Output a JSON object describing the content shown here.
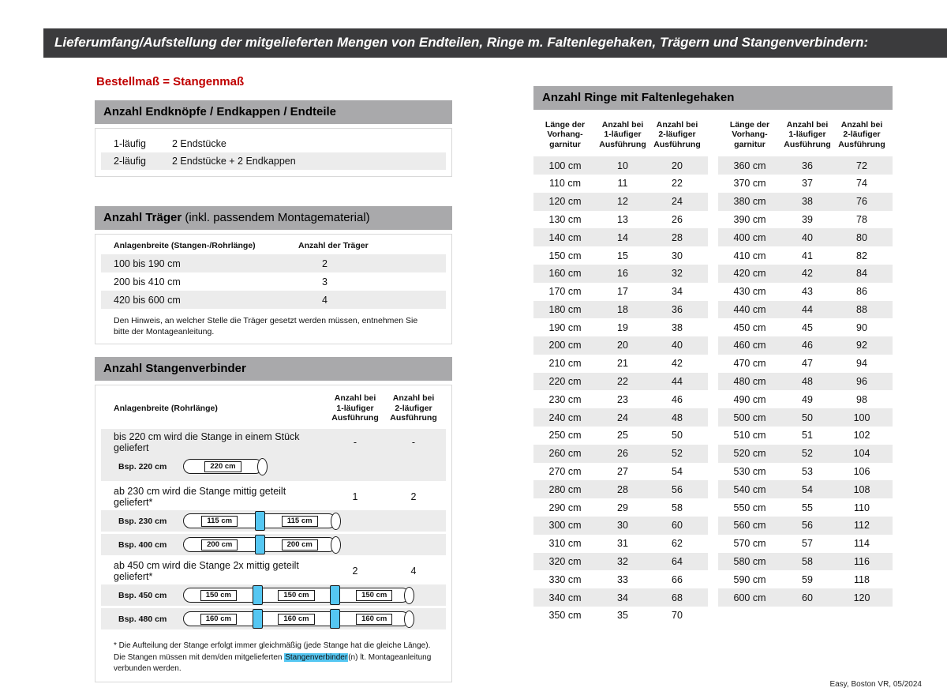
{
  "page": {
    "title": "Lieferumfang/Aufstellung der mitgelieferten Mengen von Endteilen, Ringe m. Faltenlegehaken, Trägern und Stangenverbindern:",
    "note_red": "Bestellmaß = Stangenmaß",
    "footer": "Easy, Boston VR, 05/2024"
  },
  "colors": {
    "title_bar_bg": "#3b3b3d",
    "section_bar_bg": "#a9a9ab",
    "accent_red": "#c00000",
    "row_stripe": "#ececec",
    "connector_blue": "#55c7f2"
  },
  "endteile": {
    "title": "Anzahl Endknöpfe / Endkappen / Endteile",
    "rows": [
      {
        "label": "1-läufig",
        "value": "2 Endstücke"
      },
      {
        "label": "2-läufig",
        "value": "2 Endstücke + 2 Endkappen"
      }
    ]
  },
  "traeger": {
    "title_bold": "Anzahl Träger",
    "title_rest": " (inkl. passendem Montagematerial)",
    "col1": "Anlagenbreite (Stangen-/Rohrlänge)",
    "col2": "Anzahl der Träger",
    "rows": [
      {
        "range": "100 bis 190 cm",
        "count": "2"
      },
      {
        "range": "200 bis 410 cm",
        "count": "3"
      },
      {
        "range": "420 bis 600 cm",
        "count": "4"
      }
    ],
    "note": "Den Hinweis, an welcher Stelle die Träger gesetzt werden müssen, entnehmen Sie bitte der Montageanleitung."
  },
  "verbinder": {
    "title": "Anzahl Stangenverbinder",
    "col1": "Anlagenbreite (Rohrlänge)",
    "col2": "Anzahl bei\n1-läufiger\nAusführung",
    "col3": "Anzahl bei\n2-läufiger\nAusführung",
    "groups": [
      {
        "text": "bis 220 cm wird die Stange in einem Stück geliefert",
        "count1": "-",
        "count2": "-",
        "examples": [
          {
            "label": "Bsp. 220 cm",
            "segments": [
              "220 cm"
            ]
          }
        ]
      },
      {
        "text": "ab 230 cm wird die Stange mittig geteilt geliefert*",
        "count1": "1",
        "count2": "2",
        "examples": [
          {
            "label": "Bsp. 230 cm",
            "segments": [
              "115 cm",
              "115 cm"
            ]
          },
          {
            "label": "Bsp. 400 cm",
            "segments": [
              "200 cm",
              "200 cm"
            ]
          }
        ]
      },
      {
        "text": "ab 450 cm wird die Stange 2x mittig geteilt geliefert*",
        "count1": "2",
        "count2": "4",
        "examples": [
          {
            "label": "Bsp. 450 cm",
            "segments": [
              "150 cm",
              "150 cm",
              "150 cm"
            ]
          },
          {
            "label": "Bsp. 480 cm",
            "segments": [
              "160 cm",
              "160 cm",
              "160 cm"
            ]
          }
        ]
      }
    ],
    "footnote_pre": "* Die Aufteilung der Stange erfolgt immer gleichmäßig (jede Stange hat die gleiche Länge). Die Stangen müssen mit dem/den mitgelieferten ",
    "footnote_highlight": "Stangenverbinder",
    "footnote_post": "(n) lt. Montageanleitung verbunden werden."
  },
  "rings": {
    "title": "Anzahl Ringe mit Faltenlegehaken",
    "col_length": "Länge der\nVorhang-\ngarnitur",
    "col_one": "Anzahl bei\n1-läufiger\nAusführung",
    "col_two": "Anzahl bei\n2-läufiger\nAusführung",
    "left_rows": [
      [
        "100 cm",
        "10",
        "20"
      ],
      [
        "110 cm",
        "11",
        "22"
      ],
      [
        "120 cm",
        "12",
        "24"
      ],
      [
        "130 cm",
        "13",
        "26"
      ],
      [
        "140 cm",
        "14",
        "28"
      ],
      [
        "150 cm",
        "15",
        "30"
      ],
      [
        "160 cm",
        "16",
        "32"
      ],
      [
        "170 cm",
        "17",
        "34"
      ],
      [
        "180 cm",
        "18",
        "36"
      ],
      [
        "190 cm",
        "19",
        "38"
      ],
      [
        "200 cm",
        "20",
        "40"
      ],
      [
        "210 cm",
        "21",
        "42"
      ],
      [
        "220 cm",
        "22",
        "44"
      ],
      [
        "230 cm",
        "23",
        "46"
      ],
      [
        "240 cm",
        "24",
        "48"
      ],
      [
        "250 cm",
        "25",
        "50"
      ],
      [
        "260 cm",
        "26",
        "52"
      ],
      [
        "270 cm",
        "27",
        "54"
      ],
      [
        "280 cm",
        "28",
        "56"
      ],
      [
        "290 cm",
        "29",
        "58"
      ],
      [
        "300 cm",
        "30",
        "60"
      ],
      [
        "310 cm",
        "31",
        "62"
      ],
      [
        "320 cm",
        "32",
        "64"
      ],
      [
        "330 cm",
        "33",
        "66"
      ],
      [
        "340 cm",
        "34",
        "68"
      ],
      [
        "350 cm",
        "35",
        "70"
      ]
    ],
    "right_rows": [
      [
        "360 cm",
        "36",
        "72"
      ],
      [
        "370 cm",
        "37",
        "74"
      ],
      [
        "380 cm",
        "38",
        "76"
      ],
      [
        "390 cm",
        "39",
        "78"
      ],
      [
        "400 cm",
        "40",
        "80"
      ],
      [
        "410 cm",
        "41",
        "82"
      ],
      [
        "420 cm",
        "42",
        "84"
      ],
      [
        "430 cm",
        "43",
        "86"
      ],
      [
        "440 cm",
        "44",
        "88"
      ],
      [
        "450 cm",
        "45",
        "90"
      ],
      [
        "460 cm",
        "46",
        "92"
      ],
      [
        "470 cm",
        "47",
        "94"
      ],
      [
        "480 cm",
        "48",
        "96"
      ],
      [
        "490 cm",
        "49",
        "98"
      ],
      [
        "500 cm",
        "50",
        "100"
      ],
      [
        "510 cm",
        "51",
        "102"
      ],
      [
        "520 cm",
        "52",
        "104"
      ],
      [
        "530 cm",
        "53",
        "106"
      ],
      [
        "540 cm",
        "54",
        "108"
      ],
      [
        "550 cm",
        "55",
        "110"
      ],
      [
        "560 cm",
        "56",
        "112"
      ],
      [
        "570 cm",
        "57",
        "114"
      ],
      [
        "580 cm",
        "58",
        "116"
      ],
      [
        "590 cm",
        "59",
        "118"
      ],
      [
        "600 cm",
        "60",
        "120"
      ]
    ]
  }
}
